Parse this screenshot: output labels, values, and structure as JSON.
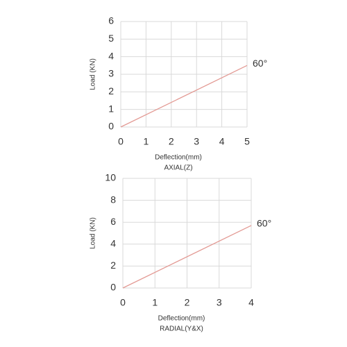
{
  "chart_data": [
    {
      "type": "line",
      "xlabel": "Deflection(mm)",
      "subtitle": "AXIAL(Z)",
      "ylabel": "Load (KN)",
      "x": [
        0,
        5
      ],
      "series": [
        {
          "color": "#e39a94",
          "values": [
            0,
            3.5
          ]
        }
      ],
      "annotation": "60°",
      "xlim": [
        0,
        5
      ],
      "xticks": [
        0,
        1,
        2,
        3,
        4,
        5
      ],
      "ylim": [
        0,
        6
      ],
      "yticks": [
        0,
        1,
        2,
        3,
        4,
        5,
        6
      ],
      "grid": true
    },
    {
      "type": "line",
      "xlabel": "Deflection(mm)",
      "subtitle": "RADIAL(Y&X)",
      "ylabel": "Load (KN)",
      "x": [
        0,
        4
      ],
      "series": [
        {
          "color": "#e39a94",
          "values": [
            0,
            5.7
          ]
        }
      ],
      "annotation": "60°",
      "xlim": [
        0,
        4
      ],
      "xticks": [
        0,
        1,
        2,
        3,
        4
      ],
      "ylim": [
        0,
        10
      ],
      "yticks": [
        0,
        2,
        4,
        6,
        8,
        10
      ],
      "grid": true
    }
  ]
}
